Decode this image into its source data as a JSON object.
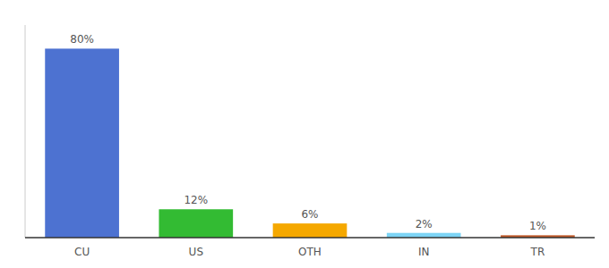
{
  "chart_data": {
    "type": "bar",
    "categories": [
      "CU",
      "US",
      "OTH",
      "IN",
      "TR"
    ],
    "values": [
      80,
      12,
      6,
      2,
      1
    ],
    "value_labels": [
      "80%",
      "12%",
      "6%",
      "2%",
      "1%"
    ],
    "colors": [
      "#4d72d1",
      "#33bb33",
      "#f5a800",
      "#7dd4f5",
      "#c05a2a"
    ],
    "ylim": [
      0,
      90
    ],
    "grid": false,
    "data_labels": true,
    "tick_labels": "x"
  }
}
